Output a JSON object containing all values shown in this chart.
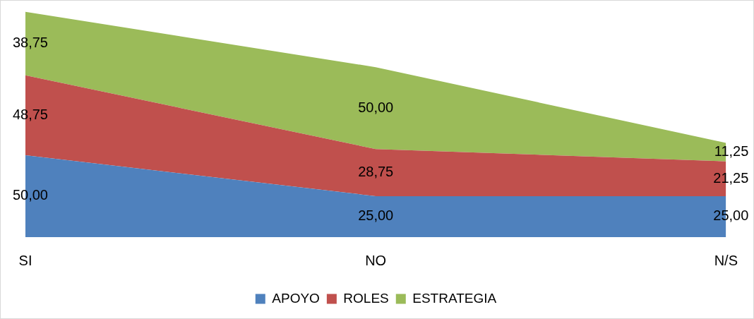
{
  "chart_data": {
    "type": "area",
    "categories": [
      "SI",
      "NO",
      "N/S"
    ],
    "stacked": true,
    "legend": "bottom",
    "grid": false,
    "series": [
      {
        "name": "APOYO",
        "color": "#4f81bd",
        "values": [
          50,
          25,
          25
        ],
        "value_labels": [
          "50,00",
          "25,00",
          "25,00"
        ]
      },
      {
        "name": "ROLES",
        "color": "#c0504d",
        "values": [
          48.75,
          28.75,
          21.25
        ],
        "value_labels": [
          "48,75",
          "28,75",
          "21,25"
        ]
      },
      {
        "name": "ESTRATEGIA",
        "color": "#9bbb59",
        "values": [
          38.75,
          50,
          11.25
        ],
        "value_labels": [
          "38,75",
          "50,00",
          "11,25"
        ]
      }
    ]
  }
}
